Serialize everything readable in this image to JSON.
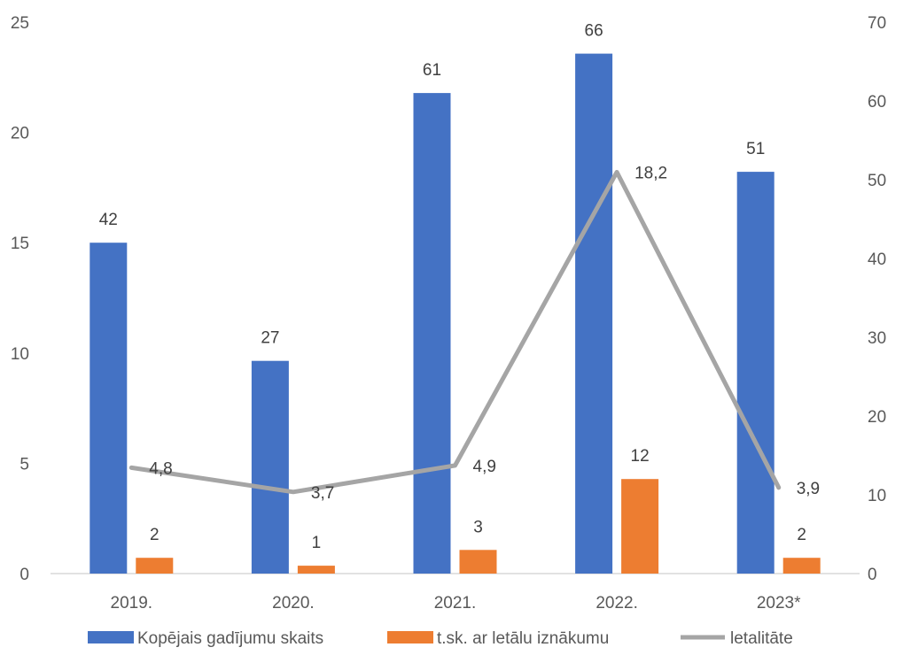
{
  "chart_data": {
    "type": "bar",
    "categories": [
      "2019.",
      "2020.",
      "2021.",
      "2022.",
      "2023*"
    ],
    "series": [
      {
        "name": "Kopējais gadījumu skaits",
        "type": "bar",
        "axis": "right",
        "color": "#4472C4",
        "values": [
          42,
          27,
          61,
          66,
          51
        ],
        "labels": [
          "42",
          "27",
          "61",
          "66",
          "51"
        ]
      },
      {
        "name": "t.sk. ar letālu iznākumu",
        "type": "bar",
        "axis": "right",
        "color": "#ED7D31",
        "values": [
          2,
          1,
          3,
          12,
          2
        ],
        "labels": [
          "2",
          "1",
          "3",
          "12",
          "2"
        ]
      },
      {
        "name": "letalitāte",
        "type": "line",
        "axis": "left",
        "color": "#A5A5A5",
        "values": [
          4.8,
          3.7,
          4.9,
          18.2,
          3.9
        ],
        "labels": [
          "4,8",
          "3,7",
          "4,9",
          "18,2",
          "3,9"
        ]
      }
    ],
    "y_left": {
      "range": [
        0,
        25
      ],
      "ticks": [
        0,
        5,
        10,
        15,
        20,
        25
      ]
    },
    "y_right": {
      "range": [
        0,
        70
      ],
      "ticks": [
        0,
        10,
        20,
        30,
        40,
        50,
        60,
        70
      ]
    },
    "grid": false,
    "legend": "bottom"
  }
}
